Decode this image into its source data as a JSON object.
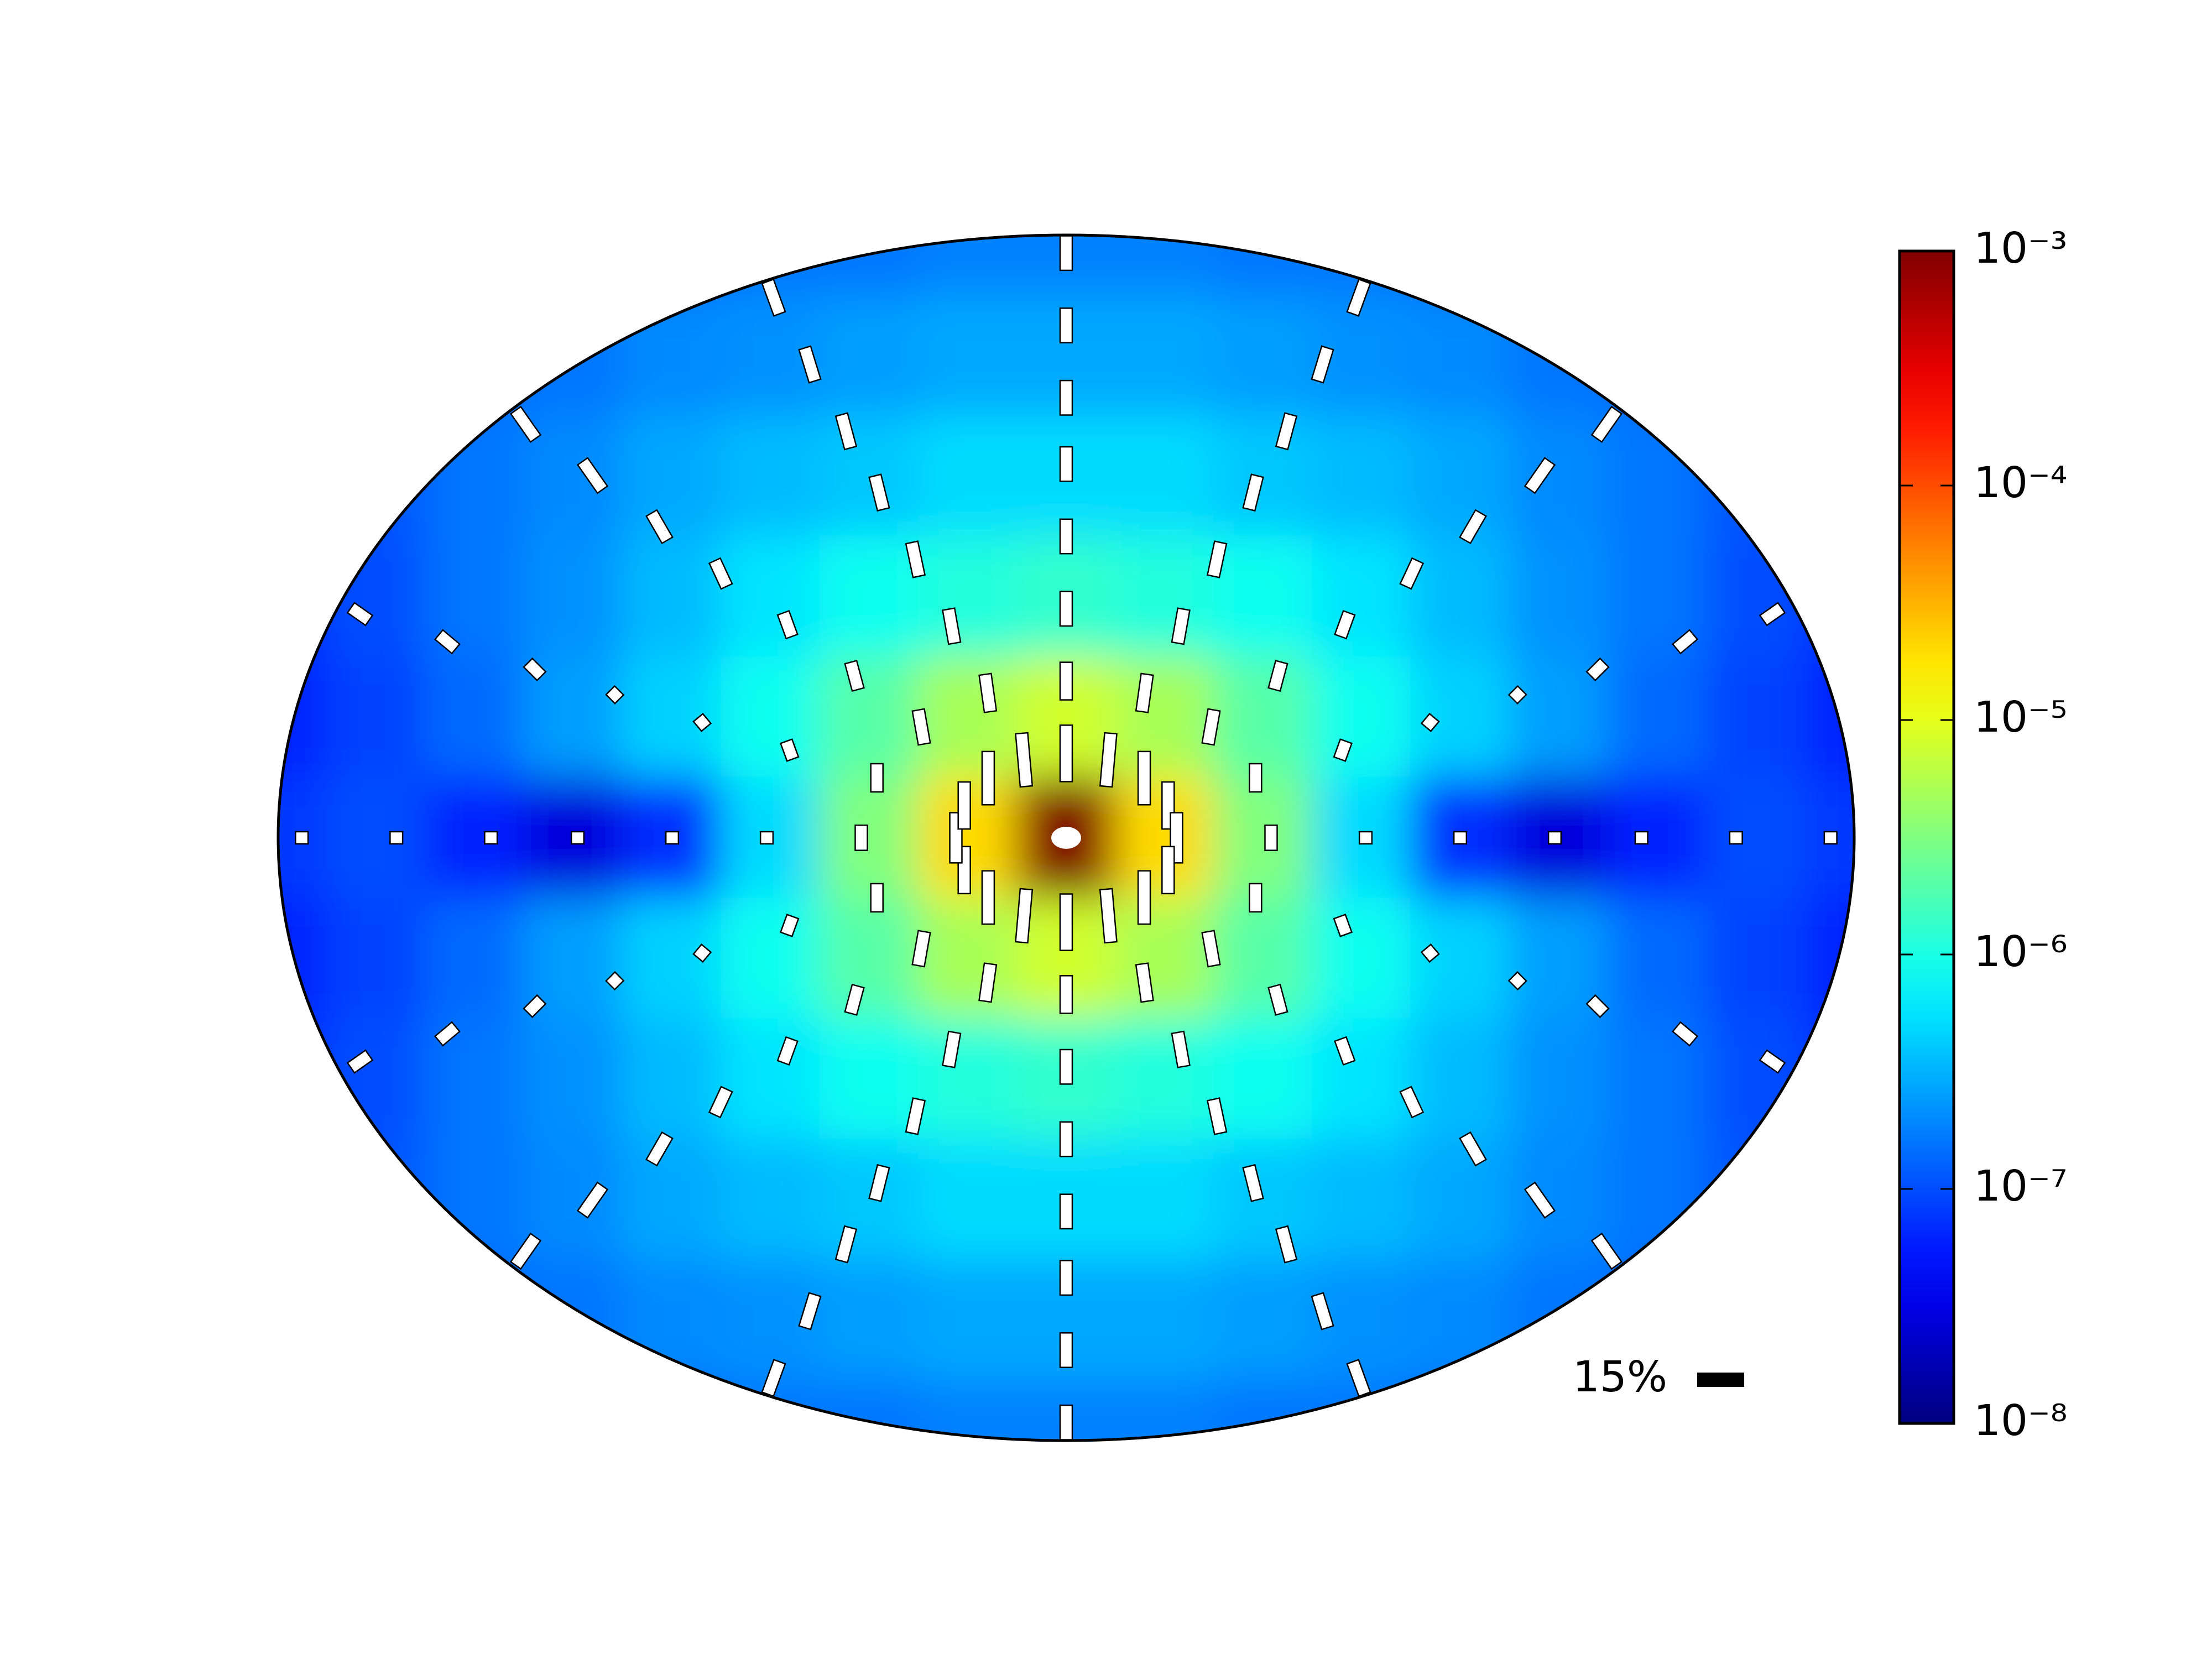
{
  "chart_data": {
    "type": "polarization-map",
    "colormap": "jet",
    "log": true,
    "clim": [
      1e-08,
      0.001
    ],
    "cticks": [
      {
        "value": 0.001,
        "label": "10⁻³"
      },
      {
        "value": 0.0001,
        "label": "10⁻⁴"
      },
      {
        "value": 1e-05,
        "label": "10⁻⁵"
      },
      {
        "value": 1e-06,
        "label": "10⁻⁶"
      },
      {
        "value": 1e-07,
        "label": "10⁻⁷"
      },
      {
        "value": 1e-08,
        "label": "10⁻⁸"
      }
    ],
    "heatmap": {
      "x": [
        -1,
        -0.875,
        -0.75,
        -0.625,
        -0.5,
        -0.375,
        -0.25,
        -0.125,
        0,
        0.125,
        0.25,
        0.375,
        0.5,
        0.625,
        0.75,
        0.875,
        1
      ],
      "y": [
        1,
        0.8,
        0.6,
        0.4,
        0.2,
        0,
        -0.2,
        -0.4,
        -0.6,
        -0.8,
        -1
      ],
      "values": [
        [
          8.9e-08,
          1e-07,
          1.1e-07,
          1.3e-07,
          1.4e-07,
          1.6e-07,
          1.6e-07,
          1.8e-07,
          1.8e-07,
          1.8e-07,
          1.6e-07,
          1.6e-07,
          1.4e-07,
          1.3e-07,
          1.1e-07,
          1e-07,
          8.9e-08
        ],
        [
          8.9e-08,
          1.1e-07,
          1.4e-07,
          1.6e-07,
          2e-07,
          2.2e-07,
          2.5e-07,
          2.8e-07,
          2.8e-07,
          2.8e-07,
          2.5e-07,
          2.2e-07,
          2e-07,
          1.6e-07,
          1.4e-07,
          1.1e-07,
          8.9e-08
        ],
        [
          7.9e-08,
          1.1e-07,
          1.6e-07,
          2e-07,
          2.8e-07,
          3.5e-07,
          4e-07,
          5e-07,
          5e-07,
          5e-07,
          4e-07,
          3.5e-07,
          2.8e-07,
          2e-07,
          1.6e-07,
          1.1e-07,
          7.9e-08
        ],
        [
          7.1e-08,
          1e-07,
          1.6e-07,
          2.2e-07,
          3.5e-07,
          5.6e-07,
          8.9e-07,
          1.1e-06,
          1.3e-06,
          1.1e-06,
          8.9e-07,
          5.6e-07,
          3.5e-07,
          2.2e-07,
          1.6e-07,
          1e-07,
          7.1e-08
        ],
        [
          6.3e-08,
          8.9e-08,
          1.4e-07,
          2.5e-07,
          4.5e-07,
          8.9e-07,
          2e-06,
          5e-06,
          7.9e-06,
          5e-06,
          2e-06,
          8.9e-07,
          4.5e-07,
          2.5e-07,
          1.4e-07,
          8.9e-08,
          6.3e-08
        ],
        [
          7.9e-08,
          1e-07,
          6.3e-08,
          2.8e-08,
          7.1e-08,
          5e-07,
          3.2e-06,
          2e-05,
          0.001,
          2e-05,
          3.2e-06,
          5e-07,
          7.1e-08,
          2.8e-08,
          6.3e-08,
          1e-07,
          7.9e-08
        ],
        [
          6.3e-08,
          8.9e-08,
          1.4e-07,
          2.5e-07,
          4.5e-07,
          8.9e-07,
          2e-06,
          5e-06,
          7.9e-06,
          5e-06,
          2e-06,
          8.9e-07,
          4.5e-07,
          2.5e-07,
          1.4e-07,
          8.9e-08,
          6.3e-08
        ],
        [
          7.1e-08,
          1e-07,
          1.6e-07,
          2.2e-07,
          3.5e-07,
          5.6e-07,
          8.9e-07,
          1.1e-06,
          1.3e-06,
          1.1e-06,
          8.9e-07,
          5.6e-07,
          3.5e-07,
          2.2e-07,
          1.6e-07,
          1e-07,
          7.1e-08
        ],
        [
          7.9e-08,
          1.1e-07,
          1.6e-07,
          2e-07,
          2.8e-07,
          3.5e-07,
          4e-07,
          5e-07,
          5e-07,
          5e-07,
          4e-07,
          3.5e-07,
          2.8e-07,
          2e-07,
          1.6e-07,
          1.1e-07,
          7.9e-08
        ],
        [
          8.9e-08,
          1.1e-07,
          1.4e-07,
          1.6e-07,
          2e-07,
          2.2e-07,
          2.5e-07,
          2.8e-07,
          2.8e-07,
          2.8e-07,
          2.5e-07,
          2.2e-07,
          2e-07,
          1.6e-07,
          1.4e-07,
          1.1e-07,
          8.9e-08
        ],
        [
          8.9e-08,
          1e-07,
          1.1e-07,
          1.3e-07,
          1.4e-07,
          1.6e-07,
          1.6e-07,
          1.8e-07,
          1.8e-07,
          1.8e-07,
          1.6e-07,
          1.6e-07,
          1.4e-07,
          1.3e-07,
          1.1e-07,
          1e-07,
          8.9e-08
        ]
      ]
    },
    "polarization": {
      "color": "#ffffff",
      "edgecolor": "#000000",
      "radii": [
        0.14,
        0.26,
        0.38,
        0.5,
        0.62,
        0.73,
        0.85,
        0.97
      ],
      "spoke_angles": [
        0,
        22.5,
        45,
        67.5,
        90,
        112.5,
        135,
        157.5,
        180,
        202.5,
        225,
        247.5,
        270,
        292.5,
        315,
        337.5
      ],
      "percent": [
        [
          18,
          12,
          11,
          11,
          11,
          11,
          11,
          11
        ],
        [
          17,
          12,
          11,
          11,
          11,
          11,
          11,
          11
        ],
        [
          17,
          11,
          9,
          8,
          9,
          10,
          11,
          11
        ],
        [
          15,
          9,
          6,
          4,
          4,
          6,
          7,
          7
        ],
        [
          16,
          8,
          4,
          4,
          4,
          4,
          4,
          4
        ],
        [
          15,
          9,
          6,
          4,
          4,
          6,
          7,
          7
        ],
        [
          17,
          11,
          9,
          8,
          9,
          10,
          11,
          11
        ],
        [
          17,
          12,
          11,
          11,
          11,
          11,
          11,
          11
        ],
        [
          18,
          12,
          11,
          11,
          11,
          11,
          11,
          11
        ],
        [
          17,
          12,
          11,
          11,
          11,
          11,
          11,
          11
        ],
        [
          17,
          11,
          9,
          8,
          9,
          10,
          11,
          11
        ],
        [
          15,
          9,
          6,
          4,
          4,
          6,
          7,
          7
        ],
        [
          16,
          8,
          4,
          4,
          4,
          4,
          4,
          4
        ],
        [
          15,
          9,
          6,
          4,
          4,
          6,
          7,
          7
        ],
        [
          17,
          11,
          9,
          8,
          9,
          10,
          11,
          11
        ],
        [
          17,
          12,
          11,
          11,
          11,
          11,
          11,
          11
        ]
      ],
      "angle": [
        [
          0,
          0,
          0,
          0,
          0,
          0,
          0,
          0
        ],
        [
          5,
          8,
          10,
          12,
          14,
          15,
          17,
          20
        ],
        [
          0,
          10,
          15,
          20,
          25,
          30,
          35,
          35
        ],
        [
          0,
          0,
          20,
          40,
          45,
          45,
          50,
          55
        ],
        [
          0,
          0,
          90,
          90,
          90,
          90,
          90,
          90
        ],
        [
          0,
          0,
          -20,
          -40,
          -45,
          -45,
          -50,
          -55
        ],
        [
          0,
          -10,
          -15,
          -20,
          -25,
          -30,
          -35,
          -35
        ],
        [
          -5,
          -8,
          -10,
          -12,
          -14,
          -15,
          -17,
          -20
        ],
        [
          0,
          0,
          0,
          0,
          0,
          0,
          0,
          0
        ],
        [
          5,
          8,
          10,
          12,
          14,
          15,
          17,
          20
        ],
        [
          0,
          10,
          15,
          20,
          25,
          30,
          35,
          35
        ],
        [
          0,
          0,
          20,
          40,
          45,
          45,
          50,
          55
        ],
        [
          0,
          0,
          90,
          90,
          90,
          90,
          90,
          90
        ],
        [
          0,
          0,
          -20,
          -40,
          -45,
          -45,
          -50,
          -55
        ],
        [
          0,
          -10,
          -15,
          -20,
          -25,
          -30,
          -35,
          -35
        ],
        [
          -5,
          -8,
          -10,
          -12,
          -14,
          -15,
          -17,
          -20
        ]
      ]
    },
    "scale_key": {
      "value": 15,
      "label": "15%"
    }
  }
}
